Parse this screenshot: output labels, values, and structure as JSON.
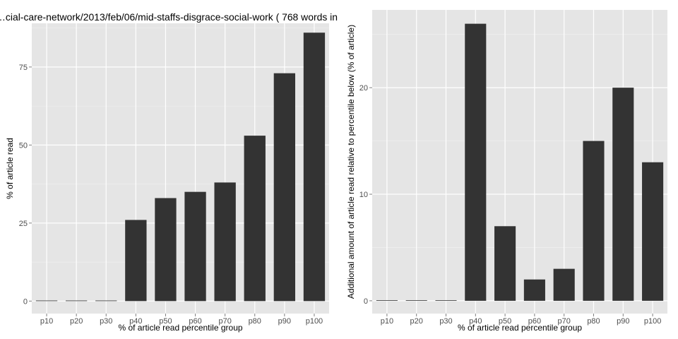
{
  "colors": {
    "panel_bg": "#e5e5e5",
    "grid_major": "#ffffff",
    "grid_minor": "#f2f2f2",
    "bar": "#333333",
    "tick": "#7f7f7f"
  },
  "chart_data": [
    {
      "type": "bar",
      "title": "…cial-care-network/2013/feb/06/mid-staffs-disgrace-social-work ( 768 words in",
      "xlabel": "% of article read percentile group",
      "ylabel": "% of article read",
      "categories": [
        "p10",
        "p20",
        "p30",
        "p40",
        "p50",
        "p60",
        "p70",
        "p80",
        "p90",
        "p100"
      ],
      "values": [
        0,
        0,
        0,
        26,
        33,
        35,
        38,
        53,
        73,
        86
      ],
      "ylim": [
        -4,
        89
      ],
      "yticks": [
        0,
        25,
        50,
        75
      ],
      "grid": true
    },
    {
      "type": "bar",
      "title": "",
      "xlabel": "% of article read percentile group",
      "ylabel": "Additional amount of article read relative to percentile below (% of article)",
      "categories": [
        "p10",
        "p20",
        "p30",
        "p40",
        "p50",
        "p60",
        "p70",
        "p80",
        "p90",
        "p100"
      ],
      "values": [
        0,
        0,
        0,
        26,
        7,
        2,
        3,
        15,
        20,
        13
      ],
      "ylim": [
        -1.2,
        27.3
      ],
      "yticks": [
        0,
        10,
        20
      ],
      "grid": true
    }
  ]
}
